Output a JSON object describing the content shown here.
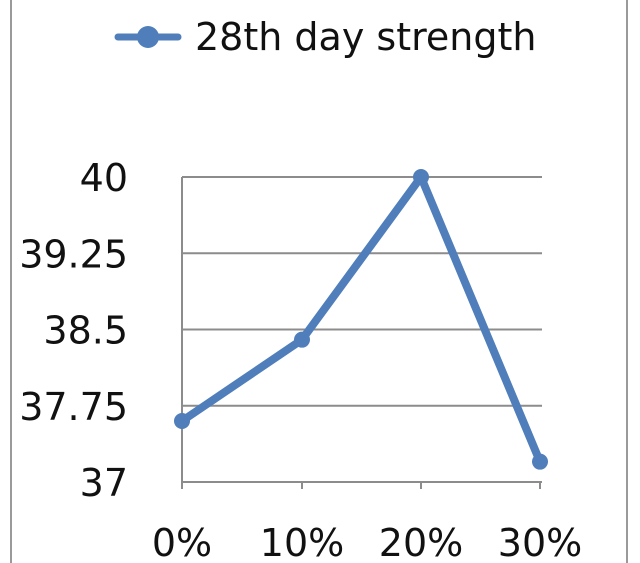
{
  "chart_data": {
    "type": "line",
    "categories": [
      "0%",
      "10%",
      "20%",
      "30%"
    ],
    "series": [
      {
        "name": "28th day strength",
        "values": [
          37.6,
          38.4,
          40.0,
          37.2
        ]
      }
    ],
    "yticks": [
      "40",
      "39.25",
      "38.5",
      "37.75",
      "37"
    ],
    "ylim": [
      37,
      40
    ],
    "grid": true,
    "legend": "top",
    "colors": {
      "series": "#4f7ebb",
      "grid": "#8c8c8c",
      "axis": "#8c8c8c"
    }
  }
}
